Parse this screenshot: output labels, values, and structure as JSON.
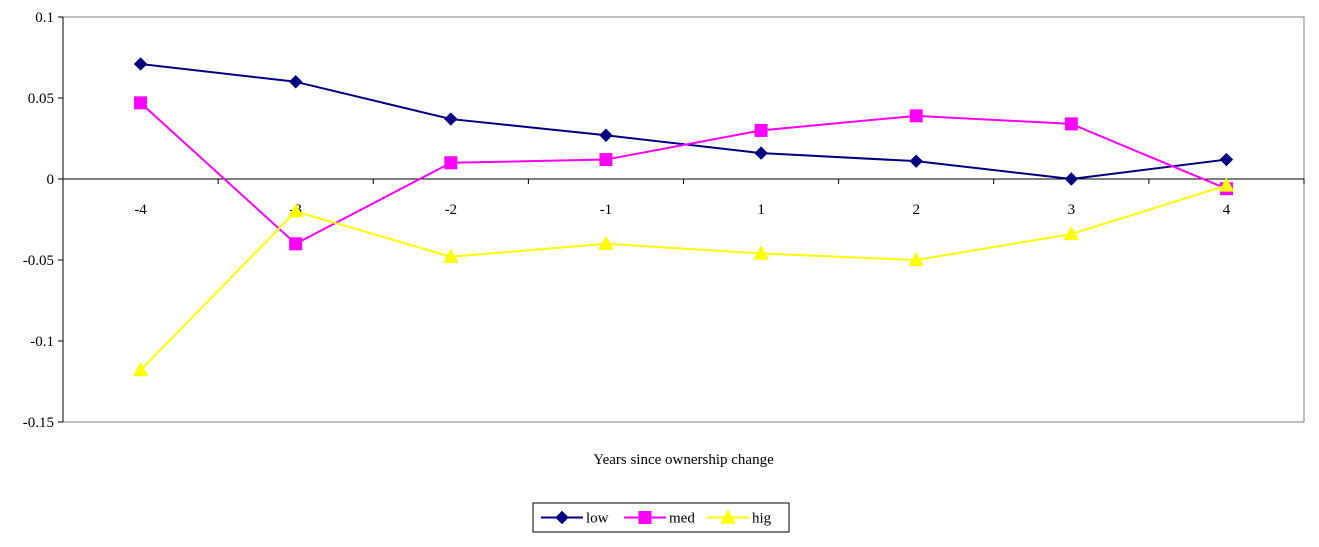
{
  "chart_data": {
    "type": "line",
    "title": "",
    "xlabel": "Years since ownership change",
    "ylabel": "",
    "categories": [
      "-4",
      "-3",
      "-2",
      "-1",
      "1",
      "2",
      "3",
      "4"
    ],
    "ylim": [
      -0.15,
      0.1
    ],
    "yticks": [
      0.1,
      0.05,
      0,
      -0.05,
      -0.1,
      -0.15
    ],
    "ytick_labels": [
      "0.1",
      "0.05",
      "0",
      "-0.05",
      "-0.1",
      "-0.15"
    ],
    "grid": false,
    "legend_position": "bottom",
    "series": [
      {
        "name": "low",
        "color": "#000080",
        "marker": "diamond",
        "values": [
          0.071,
          0.06,
          0.037,
          0.027,
          0.016,
          0.011,
          0.0,
          0.012
        ]
      },
      {
        "name": "med",
        "color": "#ff00ff",
        "marker": "square",
        "values": [
          0.047,
          -0.04,
          0.01,
          0.012,
          0.03,
          0.039,
          0.034,
          -0.006
        ]
      },
      {
        "name": "hig",
        "color": "#ffff00",
        "marker": "triangle",
        "values": [
          -0.118,
          -0.02,
          -0.048,
          -0.04,
          -0.046,
          -0.05,
          -0.034,
          -0.004
        ]
      }
    ]
  }
}
